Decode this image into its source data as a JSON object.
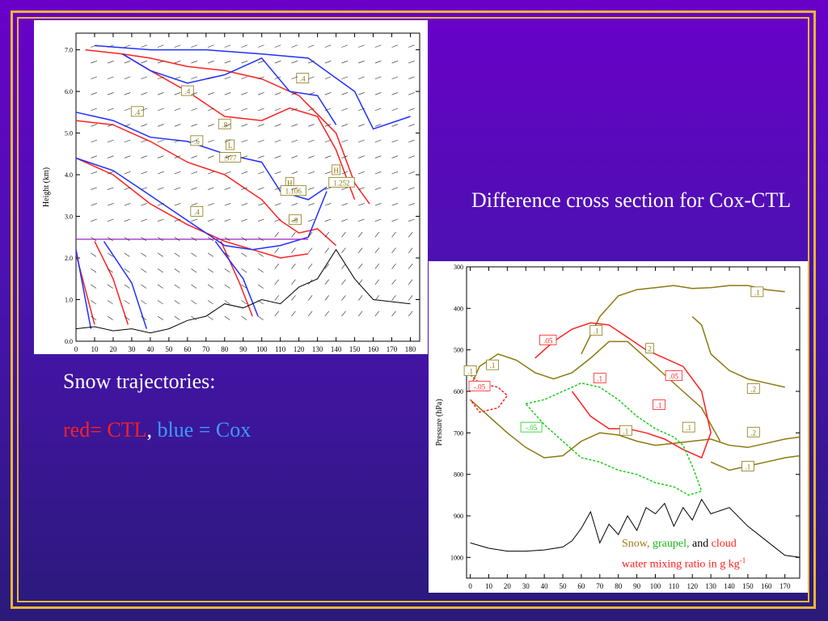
{
  "captions": {
    "diff_title": "Difference cross section for Cox-CTL",
    "snow_title": "Snow trajectories:",
    "legend_red": "red= CTL",
    "legend_sep": ",",
    "legend_blue": "blue = Cox"
  },
  "inset": {
    "snow": "Snow,",
    "graupel": "graupel,",
    "and": "and",
    "cloud": "cloud",
    "line2": "water mixing ratio in g kg",
    "sup": "-1"
  },
  "colors": {
    "red": "#ff2020",
    "blue": "#2030ff",
    "olive": "#8a7a10",
    "green": "#18d018",
    "purple": "#a020c0",
    "frame": "#e8b830"
  },
  "chart_data": [
    {
      "type": "line",
      "name_hint": "snow trajectories cross section",
      "xlabel": "",
      "ylabel": "Height (km)",
      "xlim": [
        0,
        185
      ],
      "ylim": [
        0,
        7.4
      ],
      "x_ticks": [
        0,
        10,
        20,
        30,
        40,
        50,
        60,
        70,
        80,
        90,
        100,
        110,
        120,
        130,
        140,
        150,
        160,
        170,
        180
      ],
      "x_tick_labels": [
        "0",
        "10",
        "20",
        "30",
        "40",
        "50",
        "60",
        "70",
        "80",
        "90",
        "100",
        "110",
        "120",
        "130",
        "140",
        "150",
        "160",
        "170",
        "180"
      ],
      "y_ticks": [
        0,
        1,
        2,
        3,
        4,
        5,
        6,
        7
      ],
      "y_tick_labels": [
        "0.0",
        "1.0",
        "2.0",
        "3.0",
        "4.0",
        "5.0",
        "6.0",
        "7.0"
      ],
      "contour_labels": [
        {
          "text": ".4",
          "x": 60,
          "y": 6.0
        },
        {
          "text": ".4",
          "x": 33,
          "y": 5.5
        },
        {
          "text": ".4",
          "x": 122,
          "y": 6.3
        },
        {
          "text": ".8",
          "x": 80,
          "y": 5.2
        },
        {
          "text": ".6",
          "x": 65,
          "y": 4.8
        },
        {
          "text": ".4",
          "x": 65,
          "y": 3.1
        },
        {
          "text": ".8",
          "x": 118,
          "y": 2.9
        },
        {
          "text": "L",
          "x": 83,
          "y": 4.7
        },
        {
          "text": ".977",
          "x": 83,
          "y": 4.4
        },
        {
          "text": "H",
          "x": 115,
          "y": 3.8
        },
        {
          "text": "1.106",
          "x": 117,
          "y": 3.6
        },
        {
          "text": "H",
          "x": 140,
          "y": 4.1
        },
        {
          "text": "1.252",
          "x": 143,
          "y": 3.8
        }
      ],
      "series": [
        {
          "color": "red",
          "x": [
            5,
            25,
            40,
            60,
            80,
            100,
            120,
            140,
            150,
            158
          ],
          "y": [
            7.0,
            6.9,
            6.8,
            6.6,
            6.5,
            6.3,
            5.9,
            5.0,
            3.8,
            3.3
          ]
        },
        {
          "color": "red",
          "x": [
            25,
            40,
            60,
            80,
            100,
            115,
            130,
            140,
            150
          ],
          "y": [
            6.9,
            6.5,
            6.0,
            5.4,
            5.3,
            5.6,
            5.4,
            4.6,
            3.4
          ]
        },
        {
          "color": "red",
          "x": [
            0,
            20,
            40,
            60,
            80,
            100,
            110,
            120,
            130,
            140
          ],
          "y": [
            5.3,
            5.2,
            4.8,
            4.3,
            4.0,
            3.4,
            2.9,
            2.6,
            2.7,
            2.3
          ]
        },
        {
          "color": "red",
          "x": [
            0,
            20,
            40,
            60,
            80,
            95,
            110,
            125
          ],
          "y": [
            4.4,
            4.0,
            3.3,
            2.8,
            2.4,
            2.2,
            2.0,
            2.1
          ]
        },
        {
          "color": "red",
          "x": [
            0,
            10
          ],
          "y": [
            2.1,
            0.4
          ]
        },
        {
          "color": "red",
          "x": [
            10,
            20,
            28
          ],
          "y": [
            2.4,
            1.5,
            0.4
          ]
        },
        {
          "color": "red",
          "x": [
            78,
            88,
            95
          ],
          "y": [
            2.4,
            1.4,
            0.6
          ]
        },
        {
          "color": "blue",
          "x": [
            10,
            40,
            70,
            100,
            125,
            150,
            160,
            180
          ],
          "y": [
            7.1,
            7.0,
            7.0,
            6.9,
            6.8,
            6.0,
            5.1,
            5.4
          ]
        },
        {
          "color": "blue",
          "x": [
            25,
            40,
            60,
            80,
            100,
            115,
            130,
            140
          ],
          "y": [
            6.9,
            6.5,
            6.2,
            6.4,
            6.8,
            6.0,
            5.9,
            5.2
          ]
        },
        {
          "color": "blue",
          "x": [
            0,
            20,
            40,
            60,
            80,
            100,
            110,
            125,
            135
          ],
          "y": [
            5.5,
            5.3,
            4.9,
            4.8,
            4.5,
            4.3,
            3.6,
            3.4,
            3.7
          ]
        },
        {
          "color": "blue",
          "x": [
            0,
            20,
            40,
            60,
            80,
            95,
            110,
            125,
            135
          ],
          "y": [
            4.4,
            4.1,
            3.5,
            2.9,
            2.3,
            2.2,
            2.3,
            2.5,
            3.6
          ]
        },
        {
          "color": "blue",
          "x": [
            0,
            8
          ],
          "y": [
            2.2,
            0.3
          ]
        },
        {
          "color": "blue",
          "x": [
            15,
            30,
            38
          ],
          "y": [
            2.4,
            1.4,
            0.3
          ]
        },
        {
          "color": "blue",
          "x": [
            75,
            90,
            98
          ],
          "y": [
            2.4,
            1.5,
            0.6
          ]
        }
      ]
    },
    {
      "type": "line",
      "name_hint": "difference cross section",
      "xlabel": "",
      "ylabel": "Pressure (hPa)",
      "xlim": [
        -2,
        178
      ],
      "ylim": [
        1050,
        300
      ],
      "x_ticks": [
        0,
        10,
        20,
        30,
        40,
        50,
        60,
        70,
        80,
        90,
        100,
        110,
        120,
        130,
        140,
        150,
        160,
        170
      ],
      "x_tick_labels": [
        "0",
        "10",
        "20",
        "30",
        "40",
        "50",
        "60",
        "70",
        "80",
        "90",
        "100",
        "110",
        "120",
        "130",
        "140",
        "150",
        "160",
        "170"
      ],
      "y_ticks": [
        300,
        400,
        500,
        600,
        700,
        800,
        900,
        1000
      ],
      "y_tick_labels": [
        "300",
        "400",
        "500",
        "600",
        "700",
        "800",
        "900",
        "1000"
      ],
      "contour_labels": [
        {
          "text": ".1",
          "x": 155,
          "y": 362,
          "c": "olive"
        },
        {
          "text": ".1",
          "x": 68,
          "y": 455,
          "c": "olive"
        },
        {
          "text": ".05",
          "x": 42,
          "y": 478,
          "c": "red"
        },
        {
          "text": "2",
          "x": 97,
          "y": 498,
          "c": "olive"
        },
        {
          "text": ".1",
          "x": 12,
          "y": 538,
          "c": "olive"
        },
        {
          "text": ".1",
          "x": 0,
          "y": 552,
          "c": "olive"
        },
        {
          "text": ".1",
          "x": 70,
          "y": 570,
          "c": "red"
        },
        {
          "text": ".05",
          "x": 110,
          "y": 564,
          "c": "red"
        },
        {
          "text": "-.05",
          "x": 5,
          "y": 589,
          "c": "red"
        },
        {
          "text": ".2",
          "x": 153,
          "y": 595,
          "c": "olive"
        },
        {
          "text": ".1",
          "x": 102,
          "y": 634,
          "c": "red"
        },
        {
          "text": "-.05",
          "x": 33,
          "y": 688,
          "c": "green"
        },
        {
          "text": ".1",
          "x": 84,
          "y": 696,
          "c": "olive"
        },
        {
          "text": ".1",
          "x": 118,
          "y": 688,
          "c": "olive"
        },
        {
          "text": ".2",
          "x": 153,
          "y": 700,
          "c": "olive"
        },
        {
          "text": ".1",
          "x": 150,
          "y": 782,
          "c": "olive"
        }
      ],
      "series": [
        {
          "color": "black",
          "x": [
            0,
            10,
            20,
            30,
            40,
            50,
            55,
            60,
            65,
            70,
            75,
            80,
            85,
            90,
            95,
            100,
            105,
            110,
            115,
            120,
            125,
            130,
            140,
            150,
            160,
            170,
            178
          ],
          "y": [
            965,
            978,
            985,
            985,
            982,
            975,
            960,
            930,
            890,
            965,
            920,
            945,
            900,
            935,
            880,
            895,
            870,
            925,
            880,
            910,
            860,
            895,
            880,
            925,
            960,
            995,
            1000
          ]
        },
        {
          "color": "olive",
          "x": [
            0,
            5,
            15,
            25,
            35,
            45,
            55,
            65,
            75,
            85,
            95,
            105,
            115,
            125,
            135
          ],
          "y": [
            590,
            540,
            510,
            525,
            555,
            570,
            555,
            520,
            480,
            480,
            520,
            560,
            600,
            640,
            720
          ]
        },
        {
          "color": "olive",
          "x": [
            60,
            70,
            80,
            90,
            100,
            110,
            120,
            130,
            140,
            150,
            160,
            170
          ],
          "y": [
            510,
            420,
            370,
            355,
            350,
            345,
            352,
            350,
            345,
            345,
            355,
            360
          ]
        },
        {
          "color": "olive",
          "x": [
            0,
            10,
            20,
            30,
            40,
            50,
            60,
            70,
            80,
            90,
            100,
            110,
            120,
            130,
            140,
            150,
            160,
            170,
            178
          ],
          "y": [
            620,
            660,
            700,
            735,
            760,
            755,
            720,
            700,
            705,
            720,
            730,
            725,
            720,
            715,
            730,
            735,
            725,
            715,
            710
          ]
        },
        {
          "color": "olive",
          "x": [
            130,
            140,
            150,
            160,
            170,
            178
          ],
          "y": [
            770,
            790,
            780,
            770,
            760,
            755
          ]
        },
        {
          "color": "olive",
          "x": [
            120,
            125,
            130,
            140,
            150,
            160,
            170
          ],
          "y": [
            420,
            440,
            510,
            550,
            570,
            580,
            590
          ]
        },
        {
          "color": "red",
          "x": [
            35,
            45,
            55,
            65,
            75,
            85,
            95,
            105,
            115,
            125,
            130,
            125,
            115,
            105,
            95,
            85,
            75,
            65,
            55
          ],
          "y": [
            520,
            480,
            450,
            435,
            440,
            470,
            500,
            520,
            540,
            600,
            700,
            760,
            740,
            715,
            700,
            690,
            690,
            660,
            600
          ]
        },
        {
          "color": "red",
          "x": [
            0,
            5,
            15,
            20,
            15,
            5,
            0
          ],
          "y": [
            560,
            580,
            590,
            610,
            640,
            650,
            620
          ]
        },
        {
          "color": "green",
          "x": [
            30,
            40,
            50,
            60,
            70,
            80,
            90,
            100,
            110,
            115,
            120,
            125,
            118,
            110,
            100,
            90,
            80,
            70,
            60,
            50,
            40,
            30
          ],
          "y": [
            630,
            620,
            600,
            580,
            590,
            620,
            660,
            690,
            710,
            730,
            780,
            840,
            850,
            830,
            820,
            800,
            790,
            770,
            760,
            720,
            680,
            630
          ]
        }
      ]
    }
  ]
}
